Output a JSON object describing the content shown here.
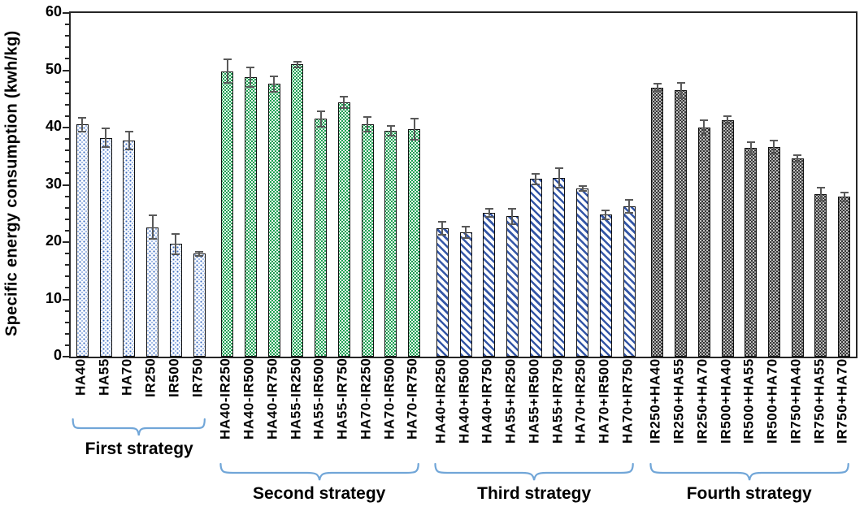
{
  "figure": {
    "ylabel": "Specific energy consumption (kwh/kg)",
    "colors": {
      "axis": "#262626",
      "error_bar": "#595959",
      "brace_blue": "#71a6d8",
      "dot_pattern_blue": "#3c6cc0",
      "green": "#1da153",
      "stripe_blue": "#3557a7",
      "dark_gray": "#383838"
    }
  },
  "chart_data": {
    "type": "bar",
    "title": "",
    "xlabel": "",
    "ylabel": "Specific energy consumption (kwh/kg)",
    "ylim": [
      0,
      60
    ],
    "ytick_step": 10,
    "yminor_step": 2,
    "ytick_labels": [
      "0",
      "10",
      "20",
      "30",
      "40",
      "50",
      "60"
    ],
    "grid": false,
    "legend": "none",
    "error_bars": true,
    "groups": [
      {
        "name": "First strategy",
        "pattern": "blue-dots",
        "categories": [
          "HA40",
          "HA55",
          "HA70",
          "IR250",
          "IR500",
          "IR750"
        ],
        "values": [
          40.5,
          38.2,
          37.8,
          22.6,
          19.7,
          18.0
        ],
        "errors": [
          1.3,
          1.8,
          1.7,
          2.2,
          1.9,
          0.5
        ]
      },
      {
        "name": "Second strategy",
        "pattern": "green-check",
        "categories": [
          "HA40-IR250",
          "HA40-IR500",
          "HA40-IR750",
          "HA55-IR250",
          "HA55-IR500",
          "HA55-IR750",
          "HA70-IR250",
          "HA70-IR500",
          "HA70-IR750"
        ],
        "values": [
          49.8,
          48.8,
          47.6,
          51.0,
          41.5,
          44.4,
          40.6,
          39.4,
          39.7
        ],
        "errors": [
          2.2,
          1.8,
          1.5,
          0.7,
          1.5,
          1.2,
          1.4,
          1.0,
          2.0
        ]
      },
      {
        "name": "Third strategy",
        "pattern": "blue-stripe",
        "categories": [
          "HA40+IR250",
          "HA40+IR500",
          "HA40+IR750",
          "HA55+IR250",
          "HA55+IR500",
          "HA55+IR750",
          "HA70+IR250",
          "HA70+IR500",
          "HA70+IR750"
        ],
        "values": [
          22.4,
          21.7,
          25.1,
          24.5,
          31.0,
          31.2,
          29.4,
          24.8,
          26.2
        ],
        "errors": [
          1.3,
          1.2,
          0.8,
          1.5,
          1.1,
          1.8,
          0.6,
          0.9,
          1.3
        ]
      },
      {
        "name": "Fourth strategy",
        "pattern": "dark-dots",
        "categories": [
          "IR250+HA40",
          "IR250+HA55",
          "IR250+HA70",
          "IR500+HA40",
          "IR500+HA55",
          "IR500+HA70",
          "IR750+HA40",
          "IR750+HA55",
          "IR750+HA70"
        ],
        "values": [
          47.0,
          46.5,
          40.0,
          41.3,
          36.4,
          36.6,
          34.6,
          28.4,
          27.9
        ],
        "errors": [
          0.8,
          1.5,
          1.4,
          0.8,
          1.2,
          1.3,
          0.7,
          1.3,
          0.9
        ]
      }
    ]
  }
}
